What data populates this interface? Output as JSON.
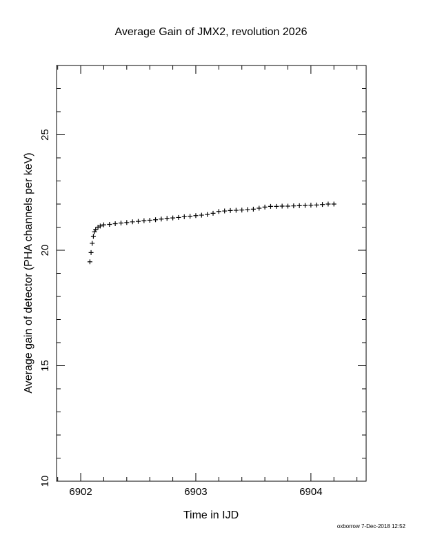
{
  "chart_data": {
    "type": "scatter",
    "title": "Average Gain of JMX2, revolution 2026",
    "x_label": "Time in IJD",
    "y_label": "Average gain of detector (PHA channels per keV)",
    "footer": "oxborrow  7-Dec-2018 12:52",
    "marker": "+",
    "color": "#000000",
    "x": [
      6902.08,
      6902.09,
      6902.1,
      6902.11,
      6902.12,
      6902.13,
      6902.15,
      6902.17,
      6902.2,
      6902.25,
      6902.3,
      6902.35,
      6902.4,
      6902.45,
      6902.5,
      6902.55,
      6902.6,
      6902.65,
      6902.7,
      6902.75,
      6902.8,
      6902.85,
      6902.9,
      6902.95,
      6903.0,
      6903.05,
      6903.1,
      6903.15,
      6903.2,
      6903.25,
      6903.3,
      6903.35,
      6903.4,
      6903.45,
      6903.5,
      6903.55,
      6903.6,
      6903.65,
      6903.7,
      6903.75,
      6903.8,
      6903.85,
      6903.9,
      6903.95,
      6904.0,
      6904.05,
      6904.1,
      6904.15,
      6904.2
    ],
    "values": [
      19.5,
      19.9,
      20.3,
      20.6,
      20.8,
      20.9,
      21.0,
      21.05,
      21.1,
      21.12,
      21.15,
      21.18,
      21.2,
      21.23,
      21.25,
      21.28,
      21.3,
      21.32,
      21.35,
      21.38,
      21.4,
      21.42,
      21.45,
      21.47,
      21.5,
      21.52,
      21.55,
      21.6,
      21.68,
      21.7,
      21.72,
      21.73,
      21.74,
      21.76,
      21.78,
      21.82,
      21.87,
      21.9,
      21.9,
      21.91,
      21.91,
      21.92,
      21.93,
      21.94,
      21.95,
      21.96,
      21.98,
      22.0,
      22.0
    ],
    "xlim": [
      6901.79,
      6904.48
    ],
    "ylim": [
      10,
      28
    ],
    "xticks": [
      6902,
      6903,
      6904
    ],
    "yticks": [
      10,
      15,
      20,
      25
    ],
    "xminorticks": [
      6901.8,
      6902.2,
      6902.4,
      6902.6,
      6902.8,
      6903.2,
      6903.4,
      6903.6,
      6903.8,
      6904.2,
      6904.4
    ],
    "yminorticks": [
      11,
      12,
      13,
      14,
      16,
      17,
      18,
      19,
      21,
      22,
      23,
      24,
      26,
      27
    ],
    "grid": false
  }
}
